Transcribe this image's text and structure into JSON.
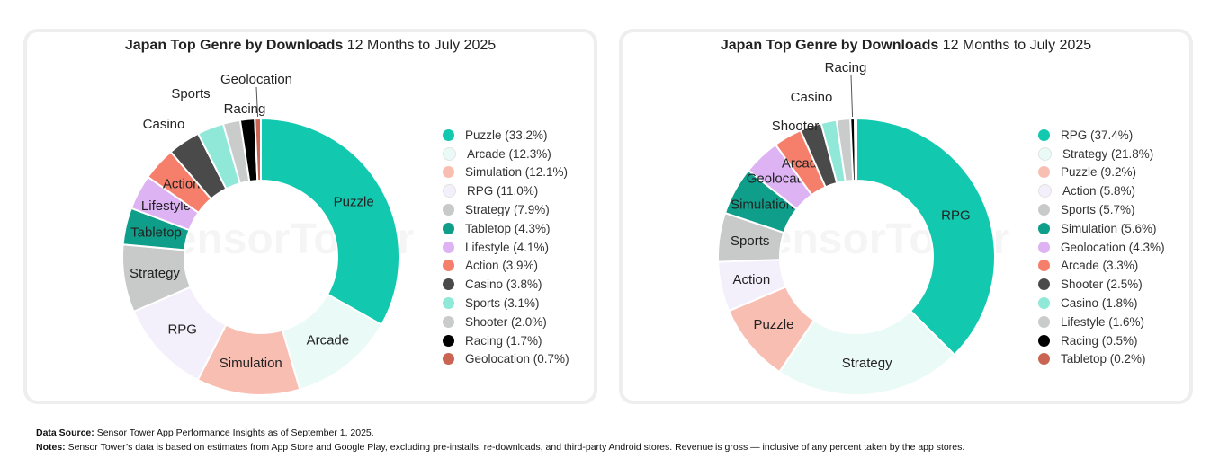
{
  "charts": [
    {
      "title_bold": "Japan Top Genre by Downloads",
      "title_rest": "12 Months to July 2025"
    },
    {
      "title_bold": "Japan Top Genre by Downloads",
      "title_rest": "12 Months to July 2025"
    }
  ],
  "watermark": "SensorTower",
  "chart_data": [
    {
      "type": "pie",
      "title": "Japan Top Genre by Downloads 12 Months to July 2025",
      "style": "donut",
      "legend_position": "right",
      "unit": "%",
      "slices": [
        {
          "label": "Puzzle",
          "value": 33.2,
          "color": "#12C9B0",
          "legend": "Puzzle (33.2%)"
        },
        {
          "label": "Arcade",
          "value": 12.3,
          "color": "#EAFAF6",
          "legend": "Arcade (12.3%)"
        },
        {
          "label": "Simulation",
          "value": 12.1,
          "color": "#F9BEB2",
          "legend": "Simulation (12.1%)"
        },
        {
          "label": "RPG",
          "value": 11.0,
          "color": "#F4F0FB",
          "legend": "RPG (11.0%)"
        },
        {
          "label": "Strategy",
          "value": 7.9,
          "color": "#C7CAC9",
          "legend": "Strategy (7.9%)"
        },
        {
          "label": "Tabletop",
          "value": 4.3,
          "color": "#0E9E8A",
          "legend": "Tabletop (4.3%)"
        },
        {
          "label": "Lifestyle",
          "value": 4.1,
          "color": "#DDB3F4",
          "legend": "Lifestyle (4.1%)"
        },
        {
          "label": "Action",
          "value": 3.9,
          "color": "#F57F6B",
          "legend": "Action (3.9%)"
        },
        {
          "label": "Casino",
          "value": 3.8,
          "color": "#4A4A4A",
          "legend": "Casino (3.8%)"
        },
        {
          "label": "Sports",
          "value": 3.1,
          "color": "#8FE8D8",
          "legend": "Sports (3.1%)"
        },
        {
          "label": "Shooter",
          "value": 2.0,
          "color": "#C9CCCB",
          "legend": "Shooter (2.0%)"
        },
        {
          "label": "Racing",
          "value": 1.7,
          "color": "#000000",
          "legend": "Racing (1.7%)"
        },
        {
          "label": "Geolocation",
          "value": 0.7,
          "color": "#C96552",
          "legend": "Geolocation (0.7%)"
        }
      ],
      "slice_labels": [
        "Puzzle",
        "Arcade",
        "Simulation",
        "RPG",
        "Strategy",
        "Tabletop",
        "Lifestyle",
        "Action",
        "Casino",
        "Sports",
        "",
        "Racing",
        "Geolocation"
      ]
    },
    {
      "type": "pie",
      "title": "Japan Top Genre by Downloads 12 Months to July 2025",
      "style": "donut",
      "legend_position": "right",
      "unit": "%",
      "slices": [
        {
          "label": "RPG",
          "value": 37.4,
          "color": "#12C9B0",
          "legend": "RPG (37.4%)"
        },
        {
          "label": "Strategy",
          "value": 21.8,
          "color": "#EAFAF6",
          "legend": "Strategy (21.8%)"
        },
        {
          "label": "Puzzle",
          "value": 9.2,
          "color": "#F9BEB2",
          "legend": "Puzzle (9.2%)"
        },
        {
          "label": "Action",
          "value": 5.8,
          "color": "#F4F0FB",
          "legend": "Action (5.8%)"
        },
        {
          "label": "Sports",
          "value": 5.7,
          "color": "#C7CAC9",
          "legend": "Sports (5.7%)"
        },
        {
          "label": "Simulation",
          "value": 5.6,
          "color": "#0E9E8A",
          "legend": "Simulation (5.6%)"
        },
        {
          "label": "Geolocation",
          "value": 4.3,
          "color": "#DDB3F4",
          "legend": "Geolocation (4.3%)"
        },
        {
          "label": "Arcade",
          "value": 3.3,
          "color": "#F57F6B",
          "legend": "Arcade (3.3%)"
        },
        {
          "label": "Shooter",
          "value": 2.5,
          "color": "#4A4A4A",
          "legend": "Shooter (2.5%)"
        },
        {
          "label": "Casino",
          "value": 1.8,
          "color": "#8FE8D8",
          "legend": "Casino (1.8%)"
        },
        {
          "label": "Lifestyle",
          "value": 1.6,
          "color": "#C9CCCB",
          "legend": "Lifestyle (1.6%)"
        },
        {
          "label": "Racing",
          "value": 0.5,
          "color": "#000000",
          "legend": "Racing (0.5%)"
        },
        {
          "label": "Tabletop",
          "value": 0.2,
          "color": "#C96552",
          "legend": "Tabletop (0.2%)"
        }
      ],
      "slice_labels": [
        "RPG",
        "Strategy",
        "Puzzle",
        "Action",
        "Sports",
        "Simulation",
        "Geolocation",
        "Arcade",
        "Shooter",
        "Casino",
        "",
        "Racing",
        ""
      ]
    }
  ],
  "footer": {
    "source_label": "Data Source:",
    "source_text": "Sensor Tower App Performance Insights as of September 1, 2025.",
    "notes_label": "Notes:",
    "notes_text": "Sensor Tower’s data is based on estimates from App Store and Google Play, excluding pre-installs, re-downloads, and third-party Android stores. Revenue is gross — inclusive of any percent taken by the app stores."
  }
}
